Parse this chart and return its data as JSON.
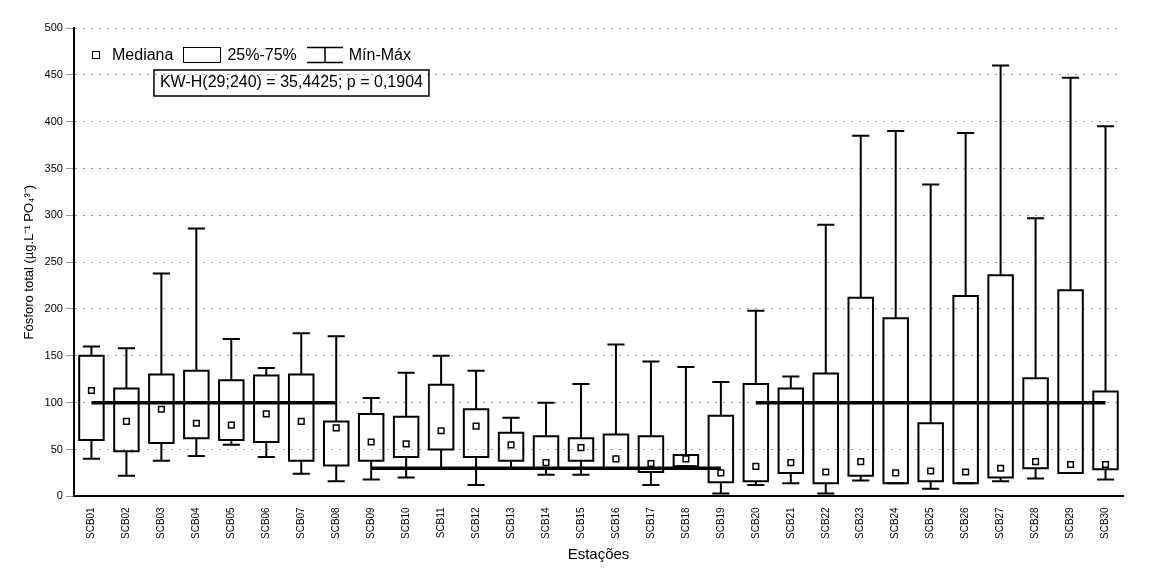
{
  "chart_data": {
    "type": "box",
    "xlabel": "Estações",
    "ylabel": "Fósforo total (µg.L⁻¹ PO₄³⁻)",
    "categories": [
      "SCB01",
      "SCB02",
      "SCB03",
      "SCB04",
      "SCB05",
      "SCB06",
      "SCB07",
      "SCB08",
      "SCB09",
      "SCB10",
      "SCB11",
      "SCB12",
      "SCB13",
      "SCB14",
      "SCB15",
      "SCB16",
      "SCB17",
      "SCB18",
      "SCB19",
      "SCB20",
      "SCB21",
      "SCB22",
      "SCB23",
      "SCB24",
      "SCB25",
      "SCB26",
      "SCB27",
      "SCB28",
      "SCB29",
      "SCB30"
    ],
    "boxes": [
      {
        "low": 40,
        "q1": 60,
        "median": 113,
        "q3": 150,
        "high": 160
      },
      {
        "low": 22,
        "q1": 48,
        "median": 80,
        "q3": 115,
        "high": 158
      },
      {
        "low": 38,
        "q1": 57,
        "median": 93,
        "q3": 130,
        "high": 238
      },
      {
        "low": 43,
        "q1": 62,
        "median": 78,
        "q3": 134,
        "high": 286
      },
      {
        "low": 55,
        "q1": 60,
        "median": 76,
        "q3": 124,
        "high": 168
      },
      {
        "low": 42,
        "q1": 58,
        "median": 88,
        "q3": 129,
        "high": 137
      },
      {
        "low": 24,
        "q1": 38,
        "median": 80,
        "q3": 130,
        "high": 174
      },
      {
        "low": 16,
        "q1": 33,
        "median": 73,
        "q3": 80,
        "high": 171
      },
      {
        "low": 18,
        "q1": 38,
        "median": 58,
        "q3": 88,
        "high": 105
      },
      {
        "low": 20,
        "q1": 42,
        "median": 56,
        "q3": 85,
        "high": 132
      },
      {
        "low": 30,
        "q1": 50,
        "median": 70,
        "q3": 119,
        "high": 150
      },
      {
        "low": 12,
        "q1": 42,
        "median": 75,
        "q3": 93,
        "high": 134
      },
      {
        "low": 30,
        "q1": 38,
        "median": 55,
        "q3": 68,
        "high": 84
      },
      {
        "low": 23,
        "q1": 30,
        "median": 36,
        "q3": 64,
        "high": 100
      },
      {
        "low": 23,
        "q1": 38,
        "median": 52,
        "q3": 62,
        "high": 120
      },
      {
        "low": 30,
        "q1": 30,
        "median": 40,
        "q3": 66,
        "high": 162
      },
      {
        "low": 12,
        "q1": 26,
        "median": 35,
        "q3": 64,
        "high": 144
      },
      {
        "low": 32,
        "q1": 32,
        "median": 40,
        "q3": 44,
        "high": 138
      },
      {
        "low": 3,
        "q1": 15,
        "median": 25,
        "q3": 86,
        "high": 122
      },
      {
        "low": 12,
        "q1": 16,
        "median": 32,
        "q3": 120,
        "high": 198
      },
      {
        "low": 14,
        "q1": 25,
        "median": 36,
        "q3": 115,
        "high": 128
      },
      {
        "low": 3,
        "q1": 14,
        "median": 26,
        "q3": 131,
        "high": 290
      },
      {
        "low": 17,
        "q1": 22,
        "median": 37,
        "q3": 212,
        "high": 385
      },
      {
        "low": 14,
        "q1": 14,
        "median": 25,
        "q3": 190,
        "high": 390
      },
      {
        "low": 8,
        "q1": 16,
        "median": 27,
        "q3": 78,
        "high": 333
      },
      {
        "low": 14,
        "q1": 14,
        "median": 26,
        "q3": 214,
        "high": 388
      },
      {
        "low": 16,
        "q1": 20,
        "median": 30,
        "q3": 236,
        "high": 460
      },
      {
        "low": 19,
        "q1": 30,
        "median": 37,
        "q3": 126,
        "high": 297
      },
      {
        "low": 25,
        "q1": 25,
        "median": 34,
        "q3": 220,
        "high": 447
      },
      {
        "low": 18,
        "q1": 29,
        "median": 34,
        "q3": 112,
        "high": 395
      }
    ],
    "series": [
      {
        "type": "line",
        "color": "#000000",
        "values": [
          100,
          100,
          100,
          100,
          100,
          100,
          100,
          100,
          null,
          null,
          null,
          null,
          null,
          null,
          null,
          null,
          null,
          null,
          null,
          null,
          null,
          null,
          null,
          null,
          null,
          null,
          null,
          null,
          null,
          null
        ]
      },
      {
        "type": "line",
        "color": "#000000",
        "values": [
          null,
          null,
          null,
          null,
          null,
          null,
          null,
          null,
          30,
          30,
          30,
          30,
          30,
          30,
          30,
          30,
          30,
          30,
          30,
          null,
          null,
          null,
          null,
          null,
          null,
          null,
          null,
          null,
          null,
          null
        ]
      },
      {
        "type": "line",
        "color": "#000000",
        "values": [
          null,
          null,
          null,
          null,
          null,
          null,
          null,
          null,
          null,
          null,
          null,
          null,
          null,
          null,
          null,
          null,
          null,
          null,
          null,
          100,
          100,
          100,
          100,
          100,
          100,
          100,
          100,
          100,
          100,
          100
        ]
      }
    ],
    "ylim": [
      0,
      500
    ],
    "yticks": [
      0,
      50,
      100,
      150,
      200,
      250,
      300,
      350,
      400,
      450,
      500
    ],
    "grid": "y",
    "line_style": "solid",
    "annotations": [
      "Mediana",
      "25%-75%",
      "Mín-Máx",
      "KW-H(29;240) = 35,4425; p = 0,1904"
    ]
  }
}
